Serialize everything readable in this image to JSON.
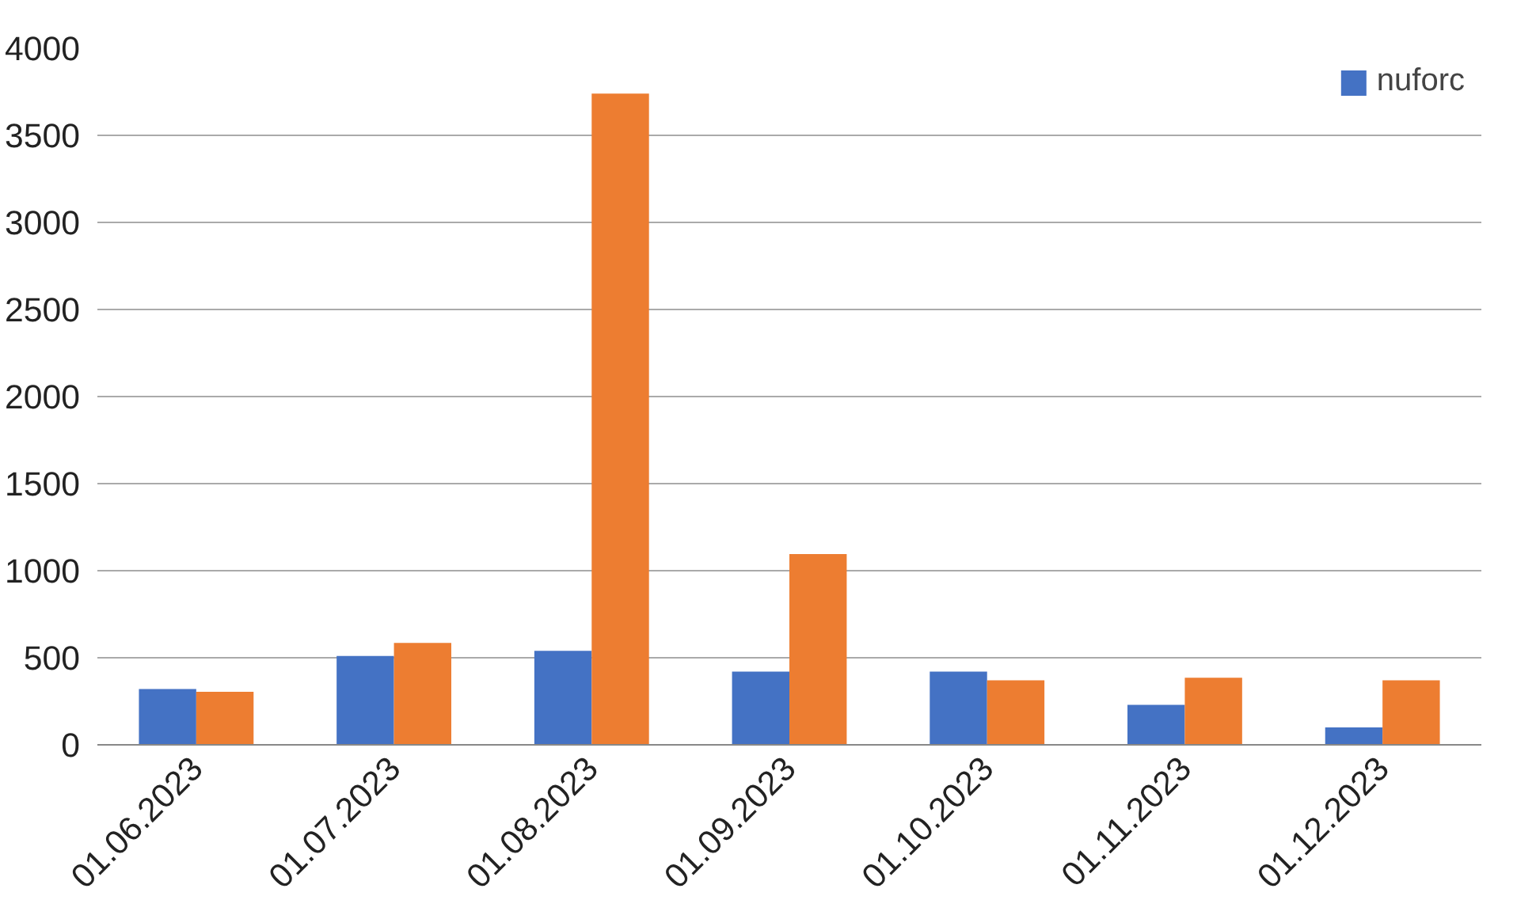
{
  "chart_data": {
    "type": "bar",
    "categories": [
      "01.06.2023",
      "01.07.2023",
      "01.08.2023",
      "01.09.2023",
      "01.10.2023",
      "01.11.2023",
      "01.12.2023"
    ],
    "series": [
      {
        "name": "nuforc",
        "color": "#4472c4",
        "values": [
          320,
          510,
          540,
          420,
          420,
          230,
          100
        ]
      },
      {
        "color": "#ed7d31",
        "values": [
          305,
          585,
          3740,
          1095,
          370,
          385,
          370
        ]
      }
    ],
    "ylim": [
      0,
      4000
    ],
    "yticks": [
      0,
      500,
      1000,
      1500,
      2000,
      2500,
      3000,
      3500,
      4000
    ],
    "grid": "y",
    "legend": "top right"
  }
}
